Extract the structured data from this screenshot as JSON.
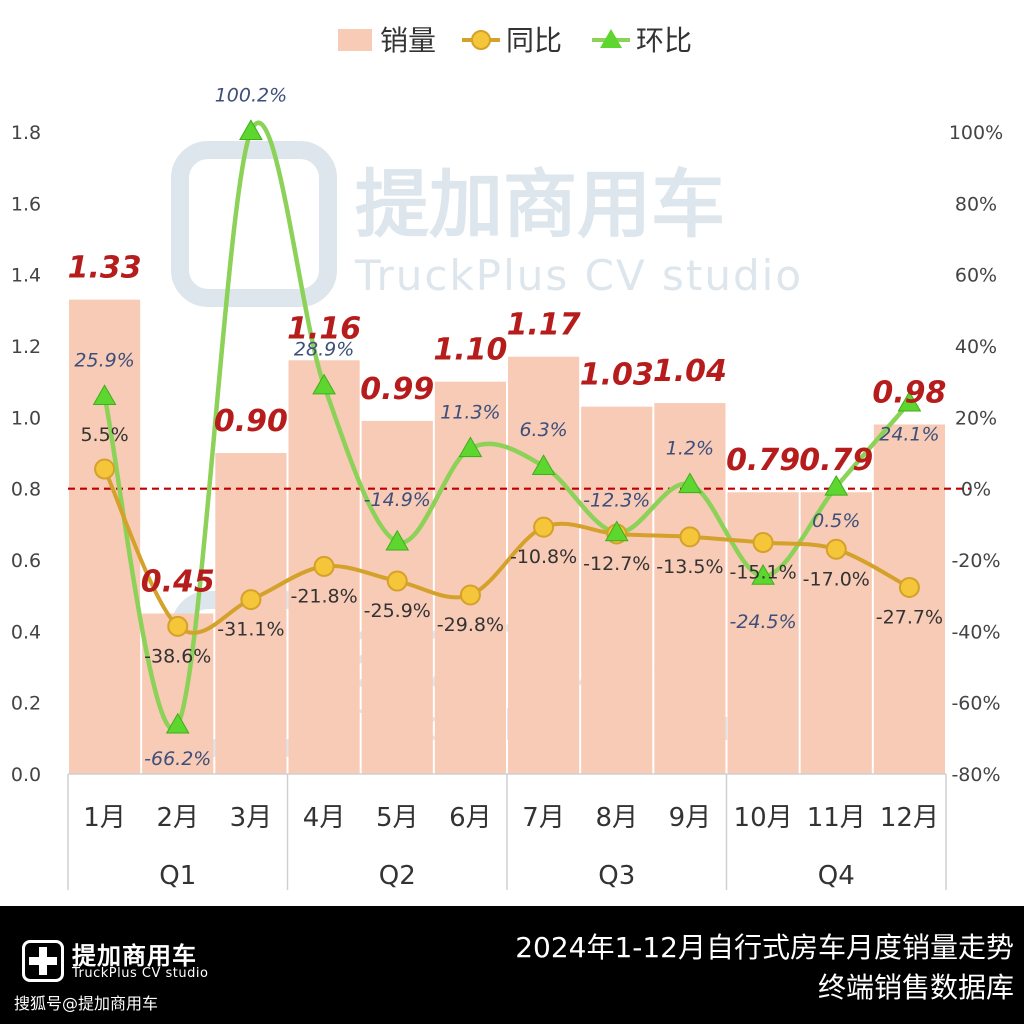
{
  "legend": {
    "bar_label": "销量",
    "yoy_label": "同比",
    "mom_label": "环比"
  },
  "watermark": {
    "cn": "提加商用车",
    "en": "TruckPlus  CV studio"
  },
  "footer": {
    "brand_cn": "提加商用车",
    "brand_en": "TruckPlus CV studio",
    "source": "搜狐号@提加商用车",
    "title_line1": "2024年1-12月自行式房车月度销量走势",
    "title_line2": "终端销售数据库"
  },
  "colors": {
    "bar": "#f8cbb6",
    "bar_label": "#b71c1c",
    "yoy_line": "#d4a12a",
    "yoy_marker": "#f5c53a",
    "mom_line": "#8cd158",
    "mom_marker": "#5ed630",
    "mom_label": "#3d4f7a",
    "zero_line": "#c00000",
    "watermark": "#dde6ec"
  },
  "chart_data": {
    "type": "bar",
    "categories": [
      "1月",
      "2月",
      "3月",
      "4月",
      "5月",
      "6月",
      "7月",
      "8月",
      "9月",
      "10月",
      "11月",
      "12月"
    ],
    "groups": [
      {
        "label": "Q1",
        "months": 3
      },
      {
        "label": "Q2",
        "months": 3
      },
      {
        "label": "Q3",
        "months": 3
      },
      {
        "label": "Q4",
        "months": 3
      }
    ],
    "series": [
      {
        "name": "销量",
        "type": "bar",
        "axis": "left",
        "values": [
          1.33,
          0.45,
          0.9,
          1.16,
          0.99,
          1.1,
          1.17,
          1.03,
          1.04,
          0.79,
          0.79,
          0.98
        ],
        "labels": [
          "1.33",
          "0.45",
          "0.90",
          "1.16",
          "0.99",
          "1.10",
          "1.17",
          "1.03",
          "1.04",
          "0.79",
          "0.79",
          "0.98"
        ]
      },
      {
        "name": "同比",
        "type": "line",
        "axis": "right",
        "values": [
          5.5,
          -38.6,
          -31.1,
          -21.8,
          -25.9,
          -29.8,
          -10.8,
          -12.7,
          -13.5,
          -15.1,
          -17.0,
          -27.7
        ],
        "labels": [
          "5.5%",
          "-38.6%",
          "-31.1%",
          "-21.8%",
          "-25.9%",
          "-29.8%",
          "-10.8%",
          "-12.7%",
          "-13.5%",
          "-15.1%",
          "-17.0%",
          "-27.7%"
        ]
      },
      {
        "name": "环比",
        "type": "line",
        "axis": "right",
        "values": [
          25.9,
          -66.2,
          100.2,
          28.9,
          -14.9,
          11.3,
          6.3,
          -12.3,
          1.2,
          -24.5,
          0.5,
          24.1
        ],
        "labels": [
          "25.9%",
          "-66.2%",
          "100.2%",
          "28.9%",
          "-14.9%",
          "11.3%",
          "6.3%",
          "-12.3%",
          "1.2%",
          "-24.5%",
          "0.5%",
          "24.1%"
        ]
      }
    ],
    "y_left": {
      "min": 0,
      "max": 1.8,
      "ticks": [
        "0.0",
        "0.2",
        "0.4",
        "0.6",
        "0.8",
        "1.0",
        "1.2",
        "1.4",
        "1.6",
        "1.8"
      ]
    },
    "y_right": {
      "min": -80,
      "max": 100,
      "ticks": [
        "-80%",
        "-60%",
        "-40%",
        "-20%",
        "0%",
        "20%",
        "40%",
        "60%",
        "80%",
        "100%"
      ]
    },
    "reference_line": {
      "axis": "right",
      "value": 0,
      "style": "dashed"
    },
    "grid": false,
    "legend_position": "top-center"
  }
}
